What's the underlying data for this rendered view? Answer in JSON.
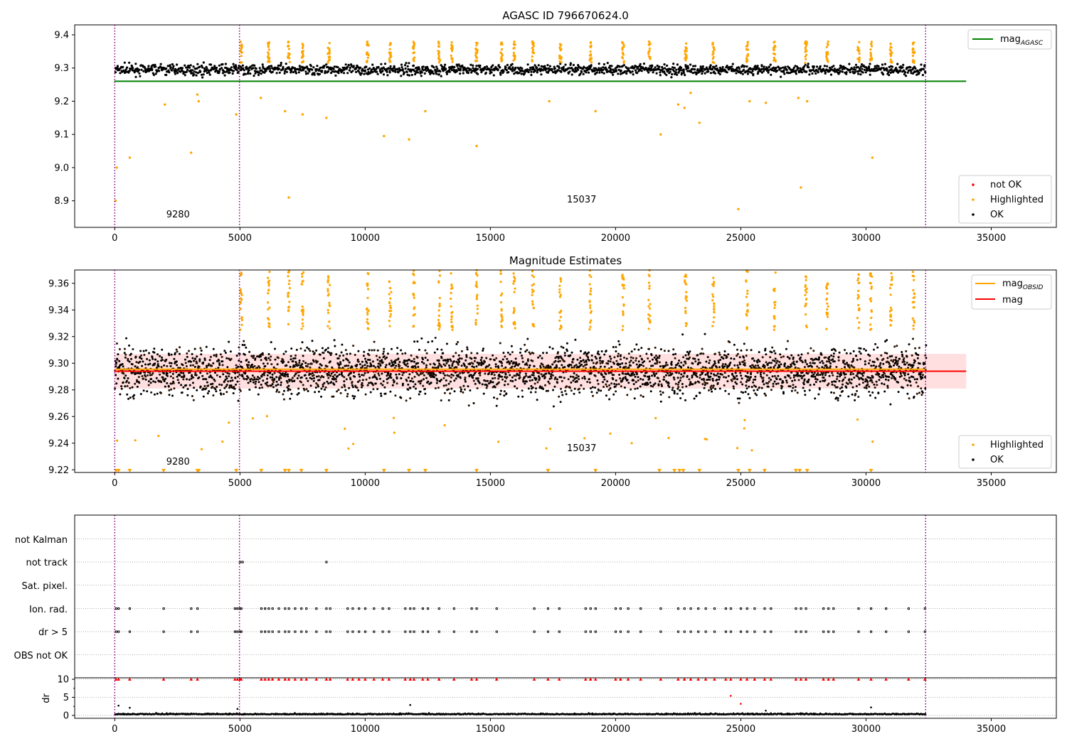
{
  "chart_data": [
    {
      "id": "top",
      "type": "scatter",
      "title": "AGASC ID 796670624.0",
      "xlim": [
        -1600,
        37600
      ],
      "ylim": [
        8.82,
        9.43
      ],
      "xticks": [
        0,
        5000,
        10000,
        15000,
        20000,
        25000,
        30000,
        35000
      ],
      "yticks": [
        8.9,
        9.0,
        9.1,
        9.2,
        9.3,
        9.4
      ],
      "ytick_labels": [
        "8.9",
        "9.0",
        "9.1",
        "9.2",
        "9.3",
        "9.4"
      ],
      "obsid_boundaries": [
        0,
        4980,
        32380
      ],
      "obsid_labels": [
        {
          "text": "9280",
          "x": 2000,
          "y": 8.85
        },
        {
          "text": "15037",
          "x": 18000,
          "y": 8.895
        }
      ],
      "reference_lines": [
        {
          "name": "mag",
          "subscript": "AGASC",
          "y": 9.26,
          "x_range": [
            -20,
            34000
          ],
          "color": "#008000"
        }
      ],
      "ok_band": {
        "center": 9.295,
        "spread": 0.014,
        "x_range": [
          0,
          32380
        ]
      },
      "highlighted_outliers": [
        [
          30,
          8.9
        ],
        [
          80,
          9.0
        ],
        [
          600,
          9.03
        ],
        [
          2000,
          9.19
        ],
        [
          3050,
          9.045
        ],
        [
          3300,
          9.22
        ],
        [
          3350,
          9.2
        ],
        [
          4850,
          9.16
        ],
        [
          5830,
          9.21
        ],
        [
          6800,
          9.17
        ],
        [
          6950,
          8.91
        ],
        [
          7500,
          9.16
        ],
        [
          8450,
          9.15
        ],
        [
          10750,
          9.095
        ],
        [
          11750,
          9.085
        ],
        [
          12400,
          9.17
        ],
        [
          14450,
          9.065
        ],
        [
          17350,
          9.2
        ],
        [
          19200,
          9.17
        ],
        [
          21800,
          9.1
        ],
        [
          22500,
          9.19
        ],
        [
          22750,
          9.18
        ],
        [
          23000,
          9.225
        ],
        [
          23350,
          9.135
        ],
        [
          24900,
          8.875
        ],
        [
          25350,
          9.2
        ],
        [
          26000,
          9.195
        ],
        [
          27300,
          9.21
        ],
        [
          27400,
          8.94
        ],
        [
          27650,
          9.2
        ],
        [
          30250,
          9.03
        ]
      ],
      "highlighted_high_clusters": [
        5050,
        6150,
        6950,
        7500,
        8550,
        10100,
        11000,
        11950,
        12950,
        13450,
        14450,
        15450,
        15950,
        16700,
        17800,
        19000,
        20300,
        21350,
        22800,
        23900,
        25250,
        26350,
        27600,
        28450,
        29700,
        30200,
        31000,
        31900
      ],
      "legend": [
        "not OK",
        "Highlighted",
        "OK"
      ],
      "legend_lines": [
        "mag"
      ],
      "colors": {
        "ok": "#000000",
        "highlighted": "#FFA500",
        "not_ok": "#FF0000",
        "agasc": "#008000",
        "boundary": "#800080"
      }
    },
    {
      "id": "mid",
      "type": "scatter",
      "title": "Magnitude Estimates",
      "xlim": [
        -1600,
        37600
      ],
      "ylim": [
        9.218,
        9.37
      ],
      "xticks": [
        0,
        5000,
        10000,
        15000,
        20000,
        25000,
        30000,
        35000
      ],
      "yticks": [
        9.22,
        9.24,
        9.26,
        9.28,
        9.3,
        9.32,
        9.34,
        9.36
      ],
      "ytick_labels": [
        "9.22",
        "9.24",
        "9.26",
        "9.28",
        "9.30",
        "9.32",
        "9.34",
        "9.36"
      ],
      "obsid_boundaries": [
        0,
        4980,
        32380
      ],
      "obsid_labels": [
        {
          "text": "9280",
          "x": 2000,
          "y": 9.224
        },
        {
          "text": "15037",
          "x": 18000,
          "y": 9.234
        }
      ],
      "mag_band": {
        "low": 9.281,
        "high": 9.307,
        "x_range": [
          0,
          34000
        ],
        "color": "#FFC0C0"
      },
      "reference_lines": [
        {
          "name": "mag",
          "subscript": "OBSID",
          "y": 9.2955,
          "x_range": [
            0,
            32380
          ],
          "color": "#FFA500"
        },
        {
          "name": "mag",
          "subscript": "",
          "y": 9.294,
          "x_range": [
            -20,
            34000
          ],
          "color": "#FF0000"
        }
      ],
      "ok_band": {
        "center": 9.294,
        "spread": 0.009,
        "x_range": [
          0,
          32380
        ]
      },
      "highlighted_low_markers": [
        50,
        150,
        600,
        1950,
        3300,
        3350,
        4850,
        5850,
        6800,
        6950,
        7450,
        8450,
        10750,
        11750,
        12400,
        14450,
        17300,
        19200,
        21750,
        22350,
        22550,
        22700,
        23350,
        24900,
        25350,
        25950,
        27200,
        27350,
        27650,
        30200
      ],
      "highlighted_high_clusters": [
        5050,
        6150,
        6950,
        7500,
        8550,
        10100,
        11000,
        11950,
        12950,
        13450,
        14450,
        15450,
        15950,
        16700,
        17800,
        19000,
        20300,
        21350,
        22800,
        23900,
        25250,
        26350,
        27600,
        28450,
        29700,
        30200,
        31000,
        31900
      ],
      "legend": [
        "Highlighted",
        "OK"
      ],
      "legend_lines": [
        "mag",
        "mag"
      ],
      "colors": {
        "ok": "#000000",
        "highlighted": "#FFA500",
        "obsid": "#FFA500",
        "mag": "#FF0000",
        "band": "#FFC0C0",
        "boundary": "#800080"
      }
    },
    {
      "id": "flags",
      "type": "scatter",
      "categories": [
        "not Kalman",
        "not track",
        "Sat. pixel.",
        "Ion. rad.",
        "dr > 5",
        "OBS not OK"
      ],
      "xlim": [
        -1600,
        37600
      ],
      "obsid_boundaries": [
        0,
        4980,
        32380
      ],
      "flag_points": {
        "not track": [
          5000,
          5100,
          8450
        ],
        "Ion. rad.": [
          50,
          150,
          600,
          1950,
          3050,
          3300,
          4800,
          4900,
          5000,
          5050,
          5850,
          6000,
          6150,
          6300,
          6550,
          6800,
          6950,
          7200,
          7450,
          7650,
          8050,
          8450,
          8600,
          9300,
          9500,
          9750,
          10000,
          10350,
          10700,
          10950,
          11600,
          11800,
          11950,
          12300,
          12500,
          12950,
          13550,
          14250,
          14450,
          15250,
          16750,
          17300,
          17750,
          18800,
          19000,
          19200,
          20000,
          20200,
          20500,
          21000,
          21800,
          22500,
          22750,
          23000,
          23300,
          23600,
          23950,
          24400,
          24600,
          25000,
          25250,
          25550,
          25950,
          26200,
          27200,
          27400,
          27600,
          28300,
          28500,
          28700,
          29700,
          30200,
          30800,
          31700,
          32350
        ],
        "dr > 5": [
          50,
          150,
          600,
          1950,
          3050,
          3300,
          4800,
          4900,
          5000,
          5050,
          5850,
          6000,
          6150,
          6300,
          6550,
          6800,
          6950,
          7200,
          7450,
          7650,
          8050,
          8450,
          8600,
          9300,
          9500,
          9750,
          10000,
          10350,
          10700,
          10950,
          11600,
          11800,
          11950,
          12300,
          12500,
          12950,
          13550,
          14250,
          14450,
          15250,
          16750,
          17300,
          17750,
          18800,
          19000,
          19200,
          20000,
          20200,
          20500,
          21000,
          21800,
          22500,
          22750,
          23000,
          23300,
          23600,
          23950,
          24400,
          24600,
          25000,
          25250,
          25550,
          25950,
          26200,
          27200,
          27400,
          27600,
          28300,
          28500,
          28700,
          29700,
          30200,
          30800,
          31700,
          32350
        ]
      }
    },
    {
      "id": "dr",
      "type": "scatter",
      "ylabel": "dr",
      "xlim": [
        -1600,
        37600
      ],
      "ylim": [
        -0.8,
        10.4
      ],
      "xticks": [
        0,
        5000,
        10000,
        15000,
        20000,
        25000,
        30000,
        35000
      ],
      "yticks": [
        0,
        5,
        10
      ],
      "ytick_labels": [
        "0",
        "5",
        "10"
      ],
      "obsid_boundaries": [
        0,
        4980,
        32380
      ],
      "clipped_markers_at_10": [
        50,
        150,
        600,
        1950,
        3050,
        3300,
        4800,
        4900,
        5000,
        5050,
        5850,
        6000,
        6150,
        6300,
        6550,
        6800,
        6950,
        7200,
        7450,
        7650,
        8050,
        8450,
        8600,
        9300,
        9500,
        9750,
        10000,
        10350,
        10700,
        10950,
        11600,
        11800,
        11950,
        12300,
        12500,
        12950,
        13550,
        14250,
        14450,
        15250,
        16750,
        17300,
        17750,
        18800,
        19000,
        19200,
        20000,
        20200,
        20500,
        21000,
        21800,
        22500,
        22750,
        23000,
        23300,
        23600,
        23950,
        24400,
        24600,
        25000,
        25250,
        25550,
        25950,
        26200,
        27200,
        27400,
        27600,
        28300,
        28500,
        28700,
        29700,
        30200,
        30800,
        31700,
        32350
      ],
      "outlier_points": [
        [
          150,
          2.7
        ],
        [
          600,
          2.1
        ],
        [
          4900,
          1.8
        ],
        [
          11800,
          2.9
        ],
        [
          24600,
          5.4
        ],
        [
          25000,
          3.2
        ],
        [
          30200,
          2.2
        ],
        [
          26000,
          1.3
        ]
      ],
      "baseline": {
        "center": 0.25,
        "spread": 0.35
      },
      "colors": {
        "ok": "#000000",
        "clipped": "#FF0000"
      }
    }
  ]
}
